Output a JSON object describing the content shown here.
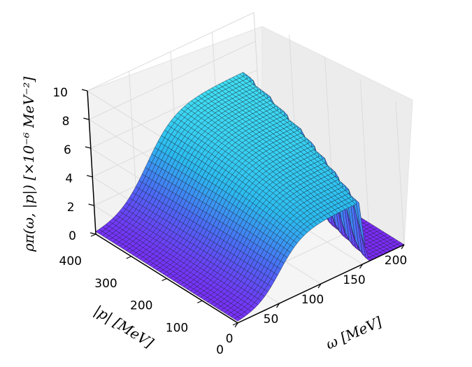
{
  "chart_data": {
    "type": "surface",
    "title": "",
    "x_axis": {
      "label": "ω [MeV]",
      "range": [
        0,
        200
      ],
      "ticks": [
        "0",
        "50",
        "100",
        "150",
        "200"
      ]
    },
    "y_axis": {
      "label": "|p| [MeV]",
      "range": [
        0,
        400
      ],
      "ticks": [
        "0",
        "100",
        "200",
        "300",
        "400"
      ]
    },
    "z_axis": {
      "label": "ρπ(ω, |p|) [×10⁻⁶ MeV⁻²]",
      "range": [
        0,
        10
      ],
      "ticks": [
        "0",
        "2",
        "4",
        "6",
        "8",
        "10"
      ]
    },
    "grid": true,
    "colormap": [
      "#7b2cf7",
      "#4c6af5",
      "#2bbbef",
      "#40e0f3"
    ],
    "surface_samples": {
      "description_free": true,
      "p_values": [
        0,
        100,
        200,
        300,
        400
      ],
      "peak_z": [
        4.3,
        5.0,
        5.6,
        6.0,
        6.3
      ],
      "peak_omega": [
        150,
        160,
        170,
        178,
        185
      ]
    }
  }
}
